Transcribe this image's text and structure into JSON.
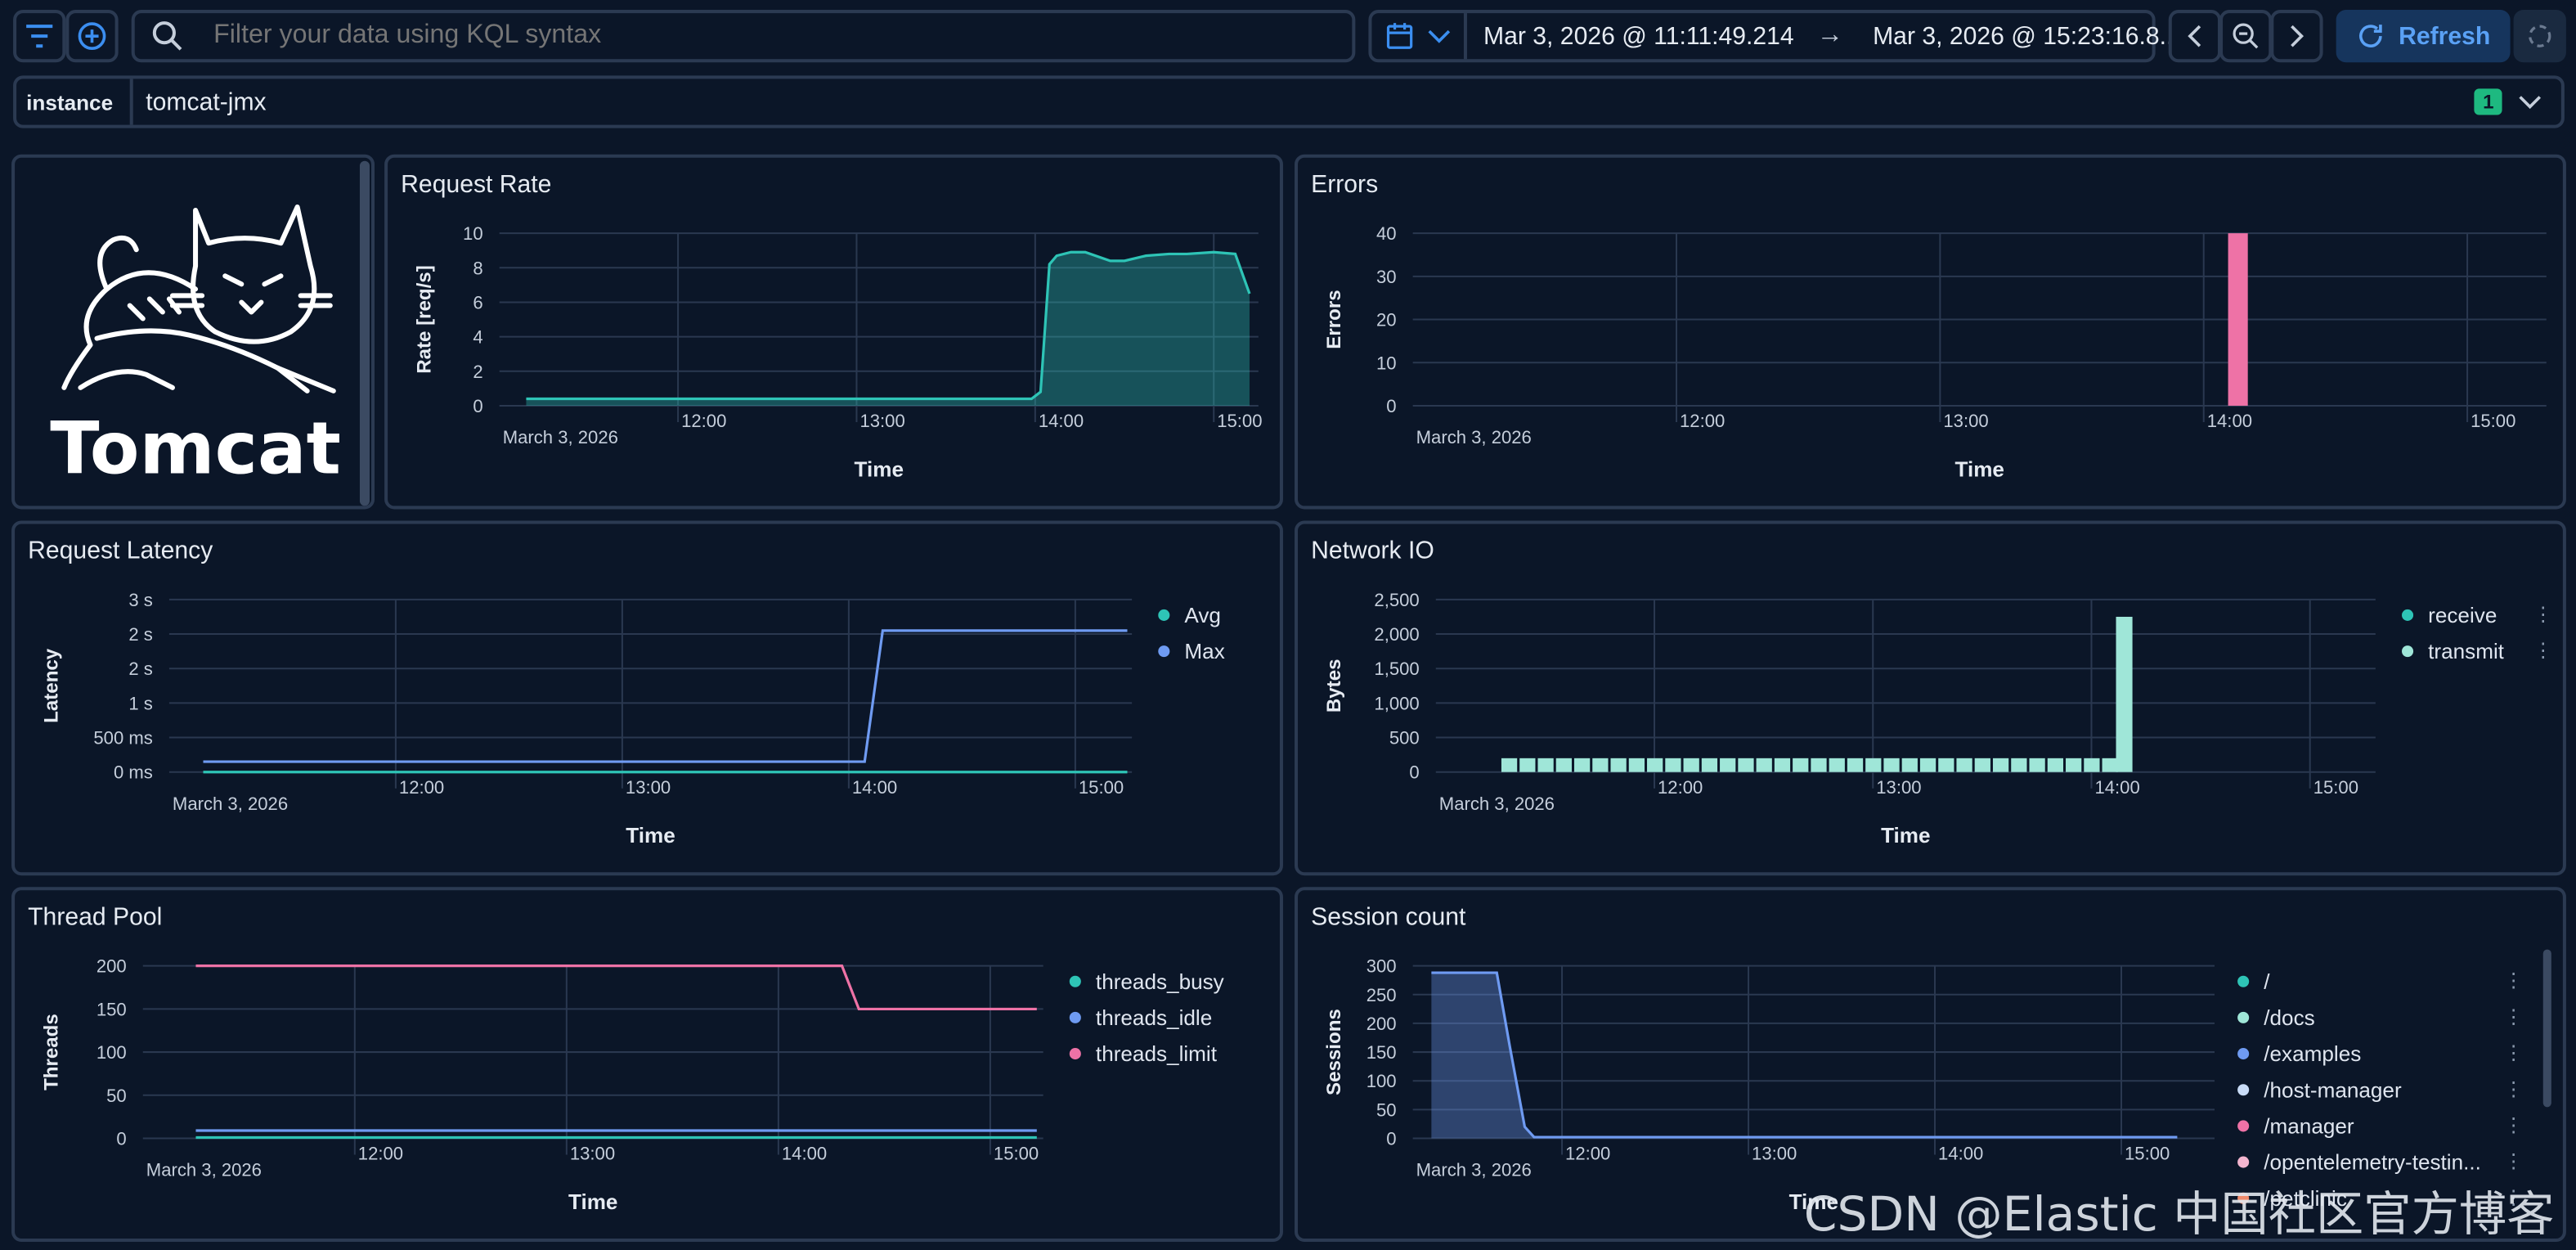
{
  "colors": {
    "bg": "#0b1628",
    "border": "#2b3a52",
    "accent": "#3b8ef0",
    "teal": "#2ec4b6",
    "blue": "#6f9bf2",
    "pink": "#ee72a6",
    "mint": "#9fe6d8",
    "lightblue": "#c9dcf7",
    "badge": "#1eb980"
  },
  "topbar": {
    "filter_icon": "filter-icon",
    "add_icon": "plus-circle-icon",
    "search_icon": "search-icon",
    "search_placeholder": "Filter your data using KQL syntax",
    "date_start": "Mar 3, 2026 @ 11:11:49.214",
    "date_arrow": "→",
    "date_end": "Mar 3, 2026 @ 15:23:16.8...",
    "refresh_label": "Refresh"
  },
  "control": {
    "label": "instance",
    "value": "tomcat-jmx",
    "count": "1"
  },
  "logo": {
    "text": "Tomcat"
  },
  "panels": {
    "request_rate": {
      "title": "Request Rate",
      "chart_data": {
        "type": "area",
        "ylabel": "Rate [req/s]",
        "xlabel": "Time",
        "date_label": "March 3, 2026",
        "yticks": [
          "0",
          "2",
          "4",
          "6",
          "8",
          "10"
        ],
        "xticks": [
          "12:00",
          "13:00",
          "14:00",
          "15:00"
        ],
        "ylim": [
          0,
          10
        ],
        "series": [
          {
            "color": "#2ec4b6",
            "x": [
              11.15,
              11.5,
              12.0,
              12.5,
              13.0,
              13.5,
              13.98,
              14.03,
              14.08,
              14.12,
              14.2,
              14.28,
              14.42,
              14.5,
              14.62,
              14.75,
              14.85,
              15.0,
              15.12,
              15.2
            ],
            "y": [
              0.4,
              0.4,
              0.4,
              0.4,
              0.4,
              0.4,
              0.4,
              0.8,
              8.2,
              8.7,
              8.9,
              8.9,
              8.4,
              8.4,
              8.7,
              8.8,
              8.8,
              8.9,
              8.8,
              6.5
            ]
          }
        ]
      }
    },
    "errors": {
      "title": "Errors",
      "chart_data": {
        "type": "bar",
        "ylabel": "Errors",
        "xlabel": "Time",
        "date_label": "March 3, 2026",
        "yticks": [
          "0",
          "10",
          "20",
          "30",
          "40"
        ],
        "xticks": [
          "12:00",
          "13:00",
          "14:00",
          "15:00"
        ],
        "ylim": [
          0,
          40
        ],
        "bars": [
          {
            "x": 14.13,
            "y": 40,
            "color": "#ee72a6"
          }
        ]
      }
    },
    "request_latency": {
      "title": "Request Latency",
      "chart_data": {
        "type": "line",
        "ylabel": "Latency",
        "xlabel": "Time",
        "date_label": "March 3, 2026",
        "yticks": [
          "0 ms",
          "500 ms",
          "1 s",
          "2 s",
          "2 s",
          "3 s"
        ],
        "xticks": [
          "12:00",
          "13:00",
          "14:00",
          "15:00"
        ],
        "ylim": [
          0,
          2.5
        ],
        "series": [
          {
            "name": "Avg",
            "color": "#2ec4b6",
            "x": [
              11.15,
              15.23
            ],
            "y": [
              0.0,
              0.0
            ]
          },
          {
            "name": "Max",
            "color": "#6f9bf2",
            "x": [
              11.15,
              13.8,
              14.07,
              14.15,
              15.23
            ],
            "y": [
              0.15,
              0.15,
              0.15,
              2.05,
              2.05
            ]
          }
        ]
      }
    },
    "network_io": {
      "title": "Network IO",
      "chart_data": {
        "type": "bar",
        "ylabel": "Bytes",
        "xlabel": "Time",
        "date_label": "March 3, 2026",
        "yticks": [
          "0",
          "500",
          "1,000",
          "1,500",
          "2,000",
          "2,500"
        ],
        "xticks": [
          "12:00",
          "13:00",
          "14:00",
          "15:00"
        ],
        "ylim": [
          0,
          2500
        ],
        "series": [
          {
            "name": "receive",
            "color": "#2ec4b6"
          },
          {
            "name": "transmit",
            "color": "#9fe6d8"
          }
        ],
        "bar_color": "#9fe6d8",
        "bar_start": 11.3,
        "bar_end": 14.05,
        "bar_step": 0.0833,
        "bar_value": 200,
        "spike": {
          "x": 14.15,
          "y": 2250
        }
      }
    },
    "thread_pool": {
      "title": "Thread Pool",
      "chart_data": {
        "type": "line",
        "ylabel": "Threads",
        "xlabel": "Time",
        "date_label": "March 3, 2026",
        "yticks": [
          "0",
          "50",
          "100",
          "150",
          "200"
        ],
        "xticks": [
          "12:00",
          "13:00",
          "14:00",
          "15:00"
        ],
        "ylim": [
          0,
          200
        ],
        "series": [
          {
            "name": "threads_busy",
            "color": "#2ec4b6",
            "x": [
              11.25,
              15.22
            ],
            "y": [
              1,
              1
            ]
          },
          {
            "name": "threads_idle",
            "color": "#6f9bf2",
            "x": [
              11.25,
              15.22
            ],
            "y": [
              9,
              9
            ]
          },
          {
            "name": "threads_limit",
            "color": "#ee72a6",
            "x": [
              11.25,
              14.3,
              14.38,
              15.22
            ],
            "y": [
              200,
              200,
              150,
              150
            ]
          }
        ]
      }
    },
    "session_count": {
      "title": "Session count",
      "chart_data": {
        "type": "area",
        "ylabel": "Sessions",
        "xlabel": "Time",
        "date_label": "March 3, 2026",
        "yticks": [
          "0",
          "50",
          "100",
          "150",
          "200",
          "250",
          "300"
        ],
        "xticks": [
          "12:00",
          "13:00",
          "14:00",
          "15:00"
        ],
        "ylim": [
          0,
          300
        ],
        "series": [
          {
            "name": "/",
            "color": "#2ec4b6"
          },
          {
            "name": "/docs",
            "color": "#9fe6d8"
          },
          {
            "name": "/examples",
            "color": "#6f9bf2",
            "x": [
              11.3,
              11.65,
              11.72,
              11.8,
              11.85,
              15.3
            ],
            "y": [
              288,
              288,
              160,
              20,
              2,
              2
            ]
          },
          {
            "name": "/host-manager",
            "color": "#c9dcf7"
          },
          {
            "name": "/manager",
            "color": "#ee72a6"
          },
          {
            "name": "/opentelemetry-testin...",
            "color": "#f4b5cf"
          },
          {
            "name": "/petclinic",
            "color": "#f08a6b"
          }
        ]
      }
    }
  },
  "watermark": "CSDN @Elastic 中国社区官方博客"
}
